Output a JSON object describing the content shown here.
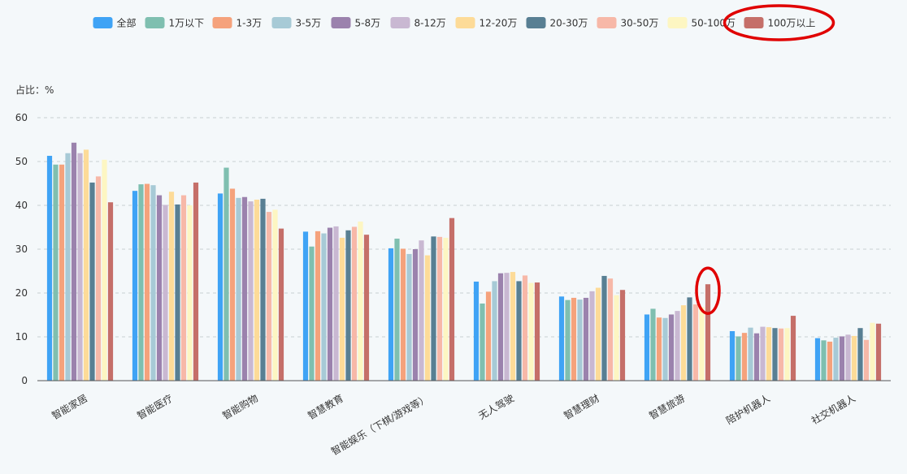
{
  "chart_data": {
    "type": "bar",
    "unit_label": "占比：%",
    "ylim": [
      0,
      60
    ],
    "yticks": [
      0,
      10,
      20,
      30,
      40,
      50,
      60
    ],
    "grid": true,
    "legend_position": "top",
    "categories": [
      "智能家居",
      "智能医疗",
      "智能购物",
      "智慧教育",
      "智能娱乐（下棋/游戏等）",
      "无人驾驶",
      "智慧理财",
      "智慧旅游",
      "陪护机器人",
      "社交机器人"
    ],
    "series": [
      {
        "name": "全部",
        "color": "#3fa3f5",
        "values": [
          51.3,
          43.3,
          42.7,
          34.0,
          30.2,
          22.6,
          19.2,
          15.1,
          11.3,
          9.7
        ]
      },
      {
        "name": "1万以下",
        "color": "#7fbfb0",
        "values": [
          49.3,
          44.8,
          48.6,
          30.6,
          32.4,
          17.6,
          18.4,
          16.4,
          10.1,
          9.2
        ]
      },
      {
        "name": "1-3万",
        "color": "#f5a27c",
        "values": [
          49.3,
          44.9,
          43.8,
          34.1,
          30.1,
          20.3,
          18.9,
          14.4,
          10.9,
          8.9
        ]
      },
      {
        "name": "3-5万",
        "color": "#a7cad6",
        "values": [
          51.9,
          44.6,
          41.7,
          33.6,
          28.9,
          22.7,
          18.5,
          14.3,
          12.1,
          9.8
        ]
      },
      {
        "name": "5-8万",
        "color": "#9b82ad",
        "values": [
          54.3,
          42.3,
          41.9,
          34.9,
          30.0,
          24.5,
          18.9,
          15.1,
          10.8,
          10.1
        ]
      },
      {
        "name": "8-12万",
        "color": "#c9b8d2",
        "values": [
          51.9,
          40.1,
          40.9,
          35.2,
          32.0,
          24.6,
          20.4,
          15.9,
          12.3,
          10.5
        ]
      },
      {
        "name": "12-20万",
        "color": "#fddb98",
        "values": [
          52.7,
          43.1,
          41.3,
          32.6,
          28.6,
          24.8,
          21.2,
          17.2,
          12.2,
          10.2
        ]
      },
      {
        "name": "20-30万",
        "color": "#587f93",
        "values": [
          45.2,
          40.2,
          41.5,
          34.3,
          32.9,
          22.7,
          23.9,
          19.0,
          12.0,
          12.0
        ]
      },
      {
        "name": "30-50万",
        "color": "#f7b8a8",
        "values": [
          46.6,
          42.3,
          38.5,
          35.1,
          32.8,
          24.0,
          23.3,
          17.4,
          11.9,
          9.3
        ]
      },
      {
        "name": "50-100万",
        "color": "#fdf6c2",
        "values": [
          50.4,
          40.0,
          39.0,
          36.3,
          32.6,
          22.3,
          19.5,
          16.8,
          12.0,
          13.2
        ]
      },
      {
        "name": "100万以上",
        "color": "#c56f69",
        "values": [
          40.7,
          45.2,
          34.7,
          33.3,
          37.1,
          22.4,
          20.7,
          22.0,
          14.8,
          13.0
        ]
      }
    ],
    "annotations": [
      {
        "type": "ellipse",
        "target": "legend:100万以上",
        "color": "#e00000"
      },
      {
        "type": "ellipse",
        "target": "bar:智慧旅游:100万以上",
        "color": "#e00000"
      }
    ]
  }
}
